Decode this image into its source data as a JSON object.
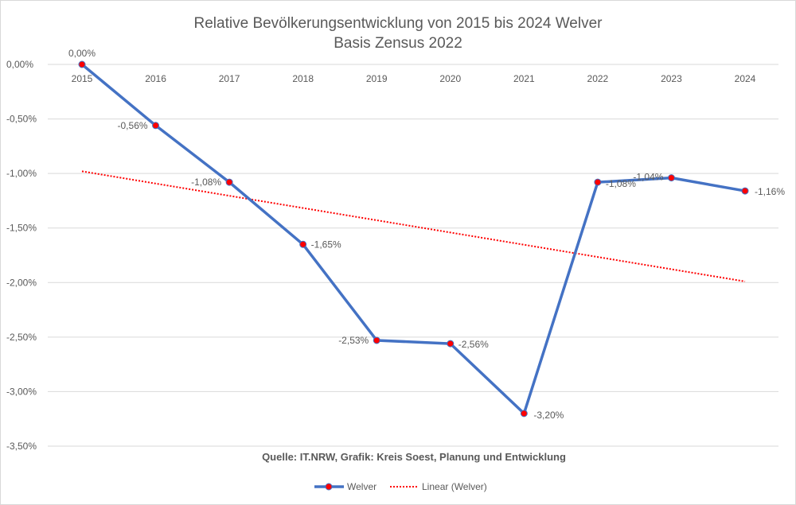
{
  "chart_data": {
    "type": "line",
    "title": "Relative Bevölkerungsentwicklung von 2015 bis 2024 Welver",
    "subtitle": "Basis Zensus 2022",
    "source": "Quelle: IT.NRW, Grafik: Kreis Soest, Planung und Entwicklung",
    "categories": [
      "2015",
      "2016",
      "2017",
      "2018",
      "2019",
      "2020",
      "2021",
      "2022",
      "2023",
      "2024"
    ],
    "series": [
      {
        "name": "Welver",
        "values": [
          0.0,
          -0.56,
          -1.08,
          -1.65,
          -2.53,
          -2.56,
          -3.2,
          -1.08,
          -1.04,
          -1.16
        ],
        "labels": [
          "0,00%",
          "-0,56%",
          "-1,08%",
          "-1,65%",
          "-2,53%",
          "-2,56%",
          "-3,20%",
          "-1,08%",
          "-1,04%",
          "-1,16%"
        ],
        "color": "#4472c4",
        "marker_color": "#ff0000"
      }
    ],
    "trendline": {
      "name": "Linear (Welver)",
      "type": "linear",
      "start": -0.98,
      "end": -1.99,
      "color": "#ff0000"
    },
    "ylim": [
      -3.5,
      0
    ],
    "yticks": [
      0,
      -0.5,
      -1,
      -1.5,
      -2,
      -2.5,
      -3,
      -3.5
    ],
    "ytick_labels": [
      "0,00%",
      "-0,50%",
      "-1,00%",
      "-1,50%",
      "-2,00%",
      "-2,50%",
      "-3,00%",
      "-3,50%"
    ],
    "grid": true,
    "legend_position": "bottom"
  }
}
